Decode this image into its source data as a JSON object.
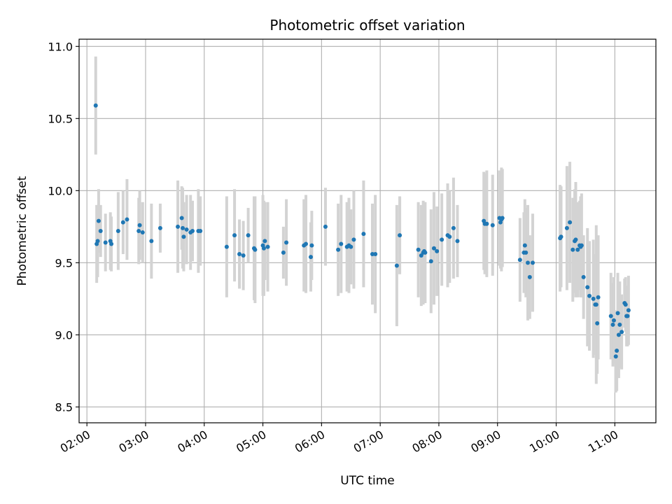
{
  "chart_data": {
    "type": "scatter",
    "title": "Photometric offset variation",
    "xlabel": "UTC time",
    "ylabel": "Photometric offset",
    "xlim": [
      "01:52",
      "11:42"
    ],
    "ylim": [
      8.39,
      11.05
    ],
    "grid": true,
    "x_ticks": [
      "02:00",
      "03:00",
      "04:00",
      "05:00",
      "06:00",
      "07:00",
      "08:00",
      "09:00",
      "10:00",
      "11:00"
    ],
    "y_ticks": [
      "8.5",
      "9.0",
      "9.5",
      "10.0",
      "10.5",
      "11.0"
    ],
    "colors": {
      "point": "#1f77b4",
      "errorbar": "#d3d3d3",
      "grid": "#b0b0b0"
    },
    "series": [
      {
        "x": [
          "02:09",
          "02:10",
          "02:11",
          "02:12",
          "02:14",
          "02:19",
          "02:24",
          "02:25",
          "02:32",
          "02:37",
          "02:41",
          "02:53",
          "02:54",
          "02:57",
          "03:06",
          "03:15",
          "03:33",
          "03:37",
          "03:38",
          "03:39",
          "03:42",
          "03:46",
          "03:48",
          "03:54",
          "03:56",
          "04:23",
          "04:31",
          "04:36",
          "04:40",
          "04:45",
          "04:51",
          "04:52",
          "05:00",
          "05:01",
          "05:02",
          "05:05",
          "05:21",
          "05:24",
          "05:42",
          "05:44",
          "05:49",
          "05:50",
          "06:04",
          "06:17",
          "06:20",
          "06:26",
          "06:28",
          "06:30",
          "06:33",
          "06:43",
          "06:52",
          "06:55",
          "07:17",
          "07:20",
          "07:39",
          "07:42",
          "07:44",
          "07:45",
          "07:46",
          "07:52",
          "07:55",
          "07:58",
          "08:03",
          "08:09",
          "08:11",
          "08:15",
          "08:19",
          "08:46",
          "08:47",
          "08:49",
          "08:55",
          "09:02",
          "09:03",
          "09:04",
          "09:05",
          "09:23",
          "09:27",
          "09:28",
          "09:29",
          "09:31",
          "09:33",
          "09:36",
          "10:04",
          "10:05",
          "10:11",
          "10:14",
          "10:17",
          "10:19",
          "10:20",
          "10:22",
          "10:24",
          "10:25",
          "10:26",
          "10:28",
          "10:32",
          "10:34",
          "10:38",
          "10:40",
          "10:41",
          "10:42",
          "10:43",
          "10:56",
          "10:58",
          "10:59",
          "11:01",
          "11:02",
          "11:03",
          "11:04",
          "11:05",
          "11:07",
          "11:10",
          "11:11",
          "11:12",
          "11:13",
          "11:14"
        ],
        "y": [
          10.59,
          9.63,
          9.65,
          9.79,
          9.72,
          9.64,
          9.65,
          9.63,
          9.72,
          9.78,
          9.8,
          9.72,
          9.76,
          9.71,
          9.65,
          9.74,
          9.75,
          9.81,
          9.74,
          9.68,
          9.73,
          9.71,
          9.72,
          9.72,
          9.72,
          9.61,
          9.69,
          9.56,
          9.55,
          9.69,
          9.6,
          9.59,
          9.62,
          9.6,
          9.65,
          9.61,
          9.57,
          9.64,
          9.62,
          9.63,
          9.54,
          9.62,
          9.75,
          9.59,
          9.63,
          9.61,
          9.62,
          9.61,
          9.66,
          9.7,
          9.56,
          9.56,
          9.48,
          9.69,
          9.59,
          9.55,
          9.57,
          9.58,
          9.57,
          9.51,
          9.6,
          9.58,
          9.66,
          9.69,
          9.68,
          9.74,
          9.65,
          9.79,
          9.77,
          9.77,
          9.76,
          9.81,
          9.78,
          9.8,
          9.81,
          9.52,
          9.57,
          9.62,
          9.57,
          9.5,
          9.4,
          9.5,
          9.67,
          9.68,
          9.74,
          9.78,
          9.59,
          9.65,
          9.66,
          9.59,
          9.62,
          9.61,
          9.62,
          9.4,
          9.33,
          9.27,
          9.25,
          9.21,
          9.21,
          9.08,
          9.26,
          9.13,
          9.07,
          9.1,
          8.85,
          8.89,
          9.15,
          9.0,
          9.07,
          9.02,
          9.22,
          9.21,
          9.13,
          9.13,
          9.17
        ],
        "error": [
          0.34,
          0.27,
          0.25,
          0.22,
          0.18,
          0.2,
          0.2,
          0.19,
          0.27,
          0.22,
          0.28,
          0.23,
          0.24,
          0.21,
          0.26,
          0.17,
          0.32,
          0.22,
          0.28,
          0.24,
          0.24,
          0.26,
          0.21,
          0.29,
          0.24,
          0.35,
          0.32,
          0.24,
          0.24,
          0.19,
          0.36,
          0.37,
          0.35,
          0.33,
          0.27,
          0.31,
          0.18,
          0.3,
          0.32,
          0.34,
          0.24,
          0.24,
          0.27,
          0.32,
          0.34,
          0.31,
          0.33,
          0.26,
          0.34,
          0.37,
          0.35,
          0.41,
          0.42,
          0.27,
          0.33,
          0.35,
          0.36,
          0.34,
          0.35,
          0.36,
          0.39,
          0.31,
          0.32,
          0.36,
          0.32,
          0.35,
          0.25,
          0.34,
          0.35,
          0.37,
          0.35,
          0.33,
          0.32,
          0.36,
          0.34,
          0.29,
          0.28,
          0.32,
          0.31,
          0.4,
          0.29,
          0.34,
          0.37,
          0.35,
          0.43,
          0.42,
          0.36,
          0.36,
          0.4,
          0.33,
          0.31,
          0.35,
          0.36,
          0.29,
          0.41,
          0.38,
          0.41,
          0.35,
          0.55,
          0.35,
          0.43,
          0.3,
          0.29,
          0.3,
          0.25,
          0.28,
          0.28,
          0.3,
          0.3,
          0.26,
          0.17,
          0.19,
          0.21,
          0.21,
          0.24
        ]
      }
    ]
  }
}
